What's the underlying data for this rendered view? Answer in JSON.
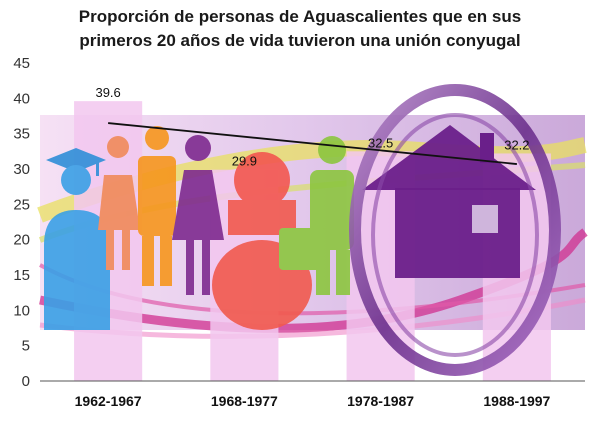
{
  "chart_data": {
    "type": "bar",
    "title_lines": [
      "Proporción de personas de Aguascalientes que en sus",
      "primeros 20 años de vida tuvieron una unión conyugal"
    ],
    "categories": [
      "1962-1967",
      "1968-1977",
      "1978-1987",
      "1988-1997"
    ],
    "values": [
      39.6,
      29.9,
      32.5,
      32.2
    ],
    "value_labels": [
      "39.6",
      "29.9",
      "32.5",
      "32.2"
    ],
    "yticks": [
      "0",
      "5",
      "10",
      "15",
      "20",
      "25",
      "30",
      "35",
      "40",
      "45"
    ],
    "ylim": [
      0,
      45
    ],
    "trendline": {
      "start": 36.5,
      "end": 30.7
    },
    "xlabel": "",
    "ylabel": "",
    "colors": {
      "bar": "#f2c7ee",
      "trend": "#111111",
      "band": "#c9a2d8",
      "house": "#6a1f8a",
      "ring": "#7a3c9a",
      "swirl_pink": "#d0308f",
      "swirl_yellow": "#e8e060"
    },
    "decorations": [
      "graduate-figure",
      "family-figures",
      "pregnant-figure",
      "house-icon",
      "ring",
      "swirls"
    ]
  }
}
